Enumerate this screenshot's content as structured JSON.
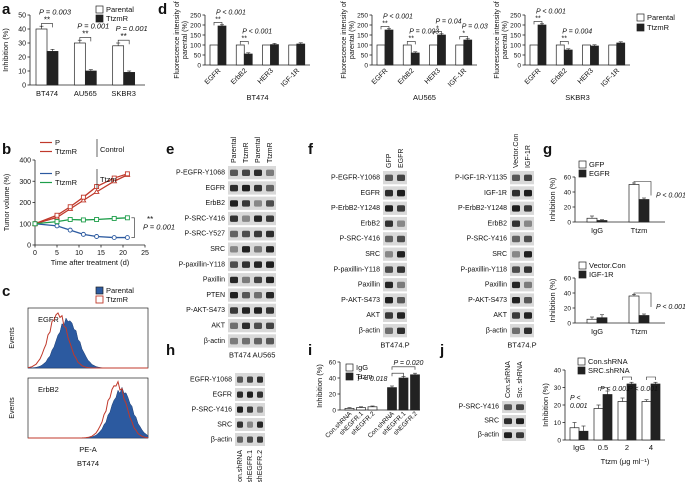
{
  "panel_letters": [
    "a",
    "b",
    "c",
    "d",
    "e",
    "f",
    "g",
    "h",
    "i",
    "j"
  ],
  "chart_data": [
    {
      "id": "a",
      "type": "bar",
      "ylabel": "Inhibition (%)",
      "ylim": [
        0,
        50
      ],
      "yticks": [
        0,
        10,
        20,
        30,
        40,
        50
      ],
      "categories": [
        "BT474",
        "AU565",
        "SKBR3"
      ],
      "series": [
        {
          "name": "Parental",
          "values": [
            40,
            30,
            28
          ],
          "err": [
            2,
            2,
            2
          ],
          "color": "#ffffff"
        },
        {
          "name": "TtzmR",
          "values": [
            24,
            10,
            9
          ],
          "err": [
            1.5,
            1,
            1
          ],
          "color": "#222222"
        }
      ],
      "legend": "top-right",
      "annotations": [
        {
          "group": 0,
          "text": "P = 0.003",
          "stars": "**"
        },
        {
          "group": 1,
          "text": "P = 0.001",
          "stars": "**"
        },
        {
          "group": 2,
          "text": "P = 0.001",
          "stars": "**"
        }
      ]
    },
    {
      "id": "b",
      "type": "line",
      "ylabel": "Tumor volume (%)",
      "xlabel": "Time after treatment (d)",
      "xlim": [
        0,
        25
      ],
      "ylim": [
        0,
        400
      ],
      "xticks": [
        0,
        5,
        10,
        15,
        20,
        25
      ],
      "yticks": [
        0,
        100,
        200,
        300,
        400
      ],
      "series": [
        {
          "name": "P",
          "group": "Control",
          "color": "#c0392b",
          "marker": "triangle",
          "x": [
            0,
            5,
            8,
            11,
            14,
            18,
            21
          ],
          "y": [
            100,
            130,
            170,
            210,
            250,
            300,
            330
          ]
        },
        {
          "name": "TtzmR",
          "group": "Control",
          "color": "#c0392b",
          "marker": "square",
          "x": [
            0,
            5,
            8,
            11,
            14,
            18,
            21
          ],
          "y": [
            100,
            140,
            180,
            225,
            275,
            315,
            335
          ]
        },
        {
          "name": "P",
          "group": "Ttzm",
          "color": "#2c5aa0",
          "marker": "circle",
          "x": [
            0,
            5,
            8,
            11,
            14,
            18,
            21
          ],
          "y": [
            100,
            90,
            70,
            50,
            40,
            35,
            35
          ]
        },
        {
          "name": "TtzmR",
          "group": "Ttzm",
          "color": "#1e9e4a",
          "marker": "square",
          "x": [
            0,
            5,
            8,
            11,
            14,
            18,
            21
          ],
          "y": [
            100,
            110,
            120,
            118,
            120,
            125,
            128
          ]
        }
      ],
      "legend_groups": [
        "Control",
        "Ttzm"
      ],
      "annotation": {
        "stars": "**",
        "text": "P = 0.001"
      }
    },
    {
      "id": "c",
      "type": "area",
      "legend": [
        "Parental",
        "TtzmR"
      ],
      "xlabel": "PE-A",
      "ylabel": "Events",
      "caption": "BT474",
      "subplots": [
        {
          "label": "EGFR",
          "mode": 0.25,
          "parental_mode": 0.33
        },
        {
          "label": "ErbB2",
          "mode": 0.74,
          "parental_mode": 0.78
        }
      ]
    },
    {
      "id": "d",
      "type": "bar",
      "ylabel": "Fluorescence intensity of parental (%)",
      "ylim": [
        0,
        250
      ],
      "yticks": [
        0,
        50,
        100,
        150,
        200,
        250
      ],
      "legend": [
        "Parental",
        "TtzmR"
      ],
      "subcharts": [
        {
          "cell": "BT474",
          "categories": [
            "EGFR",
            "ErbB2",
            "HER3",
            "IGF-1R"
          ],
          "parental": [
            100,
            100,
            100,
            100
          ],
          "ttzmr": [
            195,
            55,
            102,
            105
          ],
          "annotations": [
            {
              "text": "P < 0.001",
              "stars": "**"
            },
            {
              "text": "P < 0.001",
              "stars": "**"
            }
          ]
        },
        {
          "cell": "AU565",
          "categories": [
            "EGFR",
            "ErbB2",
            "HER3",
            "IGF-1R"
          ],
          "parental": [
            100,
            100,
            100,
            100
          ],
          "ttzmr": [
            175,
            60,
            150,
            125
          ],
          "annotations": [
            {
              "text": "P < 0.001",
              "stars": "**"
            },
            {
              "text": "P = 0.003",
              "stars": "**"
            },
            {
              "text": "P = 0.04",
              "stars": "*"
            },
            {
              "text": "P = 0.03",
              "stars": "*"
            }
          ]
        },
        {
          "cell": "SKBR3",
          "categories": [
            "EGFR",
            "ErbB2",
            "HER3",
            "IGF-1R"
          ],
          "parental": [
            100,
            100,
            100,
            100
          ],
          "ttzmr": [
            200,
            75,
            95,
            110
          ],
          "annotations": [
            {
              "text": "P < 0.001",
              "stars": "**"
            },
            {
              "text": "P = 0.004",
              "stars": "**"
            }
          ]
        }
      ]
    },
    {
      "id": "g",
      "type": "bar",
      "ylabel": "Inhibition (%)",
      "ylim": [
        0,
        60
      ],
      "yticks": [
        0,
        20,
        40,
        60
      ],
      "subcharts": [
        {
          "legend": [
            "GFP",
            "EGFR"
          ],
          "categories": [
            "IgG",
            "Ttzm"
          ],
          "values_open": [
            5,
            50
          ],
          "values_filled": [
            2,
            30
          ],
          "err_open": [
            3,
            2
          ],
          "err_filled": [
            1,
            2
          ],
          "annotation": "P < 0.001"
        },
        {
          "legend": [
            "Vector.Con",
            "IGF-1R"
          ],
          "categories": [
            "IgG",
            "Ttzm"
          ],
          "values_open": [
            5,
            36
          ],
          "values_filled": [
            7,
            10
          ],
          "err_open": [
            3,
            2
          ],
          "err_filled": [
            4,
            2
          ],
          "annotation": "P < 0.001"
        }
      ]
    },
    {
      "id": "i",
      "type": "bar",
      "ylabel": "Inhibition (%)",
      "ylim": [
        0,
        60
      ],
      "yticks": [
        0,
        20,
        40,
        60
      ],
      "legend": [
        "IgG",
        "Ttzm"
      ],
      "categories": [
        "Con.shRNA",
        "shEGFR.1",
        "shEGFR.2",
        "Con.shRNA",
        "shEGFR.1",
        "shEGFR.2"
      ],
      "values": [
        2,
        3,
        4,
        28,
        40,
        44
      ],
      "err": [
        1,
        1,
        1,
        2,
        2,
        2
      ],
      "filled": [
        false,
        false,
        false,
        true,
        true,
        true
      ],
      "annotations": [
        "P = 0.018",
        "P = 0.020"
      ]
    },
    {
      "id": "j",
      "type": "bar",
      "ylabel": "Inhibition (%)",
      "ylim": [
        0,
        40
      ],
      "yticks": [
        0,
        10,
        20,
        30,
        40
      ],
      "xlabel": "Ttzm (μg ml⁻¹)",
      "legend": [
        "Con.shRNA",
        "SRC.shRNA"
      ],
      "categories": [
        "IgG",
        "0.5",
        "2",
        "4"
      ],
      "series": [
        {
          "name": "Con.shRNA",
          "values": [
            7,
            18,
            22,
            22
          ],
          "err": [
            3,
            2,
            2,
            1
          ]
        },
        {
          "name": "SRC.shRNA",
          "values": [
            5,
            26,
            32,
            32
          ],
          "err": [
            3,
            2,
            1,
            1
          ]
        }
      ],
      "annotations": [
        "P < 0.001",
        "P < 0.001",
        "P < 0.001"
      ],
      "annotation_lines": [
        "P <",
        "0.001"
      ]
    }
  ],
  "blots": {
    "e": {
      "columns": [
        "Parental",
        "TtzmR",
        "Parental",
        "TtzmR"
      ],
      "rows": [
        "P-EGFR-Y1068",
        "EGFR",
        "ErbB2",
        "P-SRC-Y416",
        "P-SRC-Y527",
        "SRC",
        "P-paxillin-Y118",
        "Paxillin",
        "PTEN",
        "P-AKT-S473",
        "AKT",
        "β-actin"
      ],
      "groups": [
        "BT474",
        "AU565"
      ]
    },
    "f1": {
      "columns": [
        "GFP",
        "EGFR"
      ],
      "rows": [
        "P-EGFR-Y1068",
        "EGFR",
        "P-ErbB2-Y1248",
        "ErbB2",
        "P-SRC-Y416",
        "SRC",
        "P-paxillin-Y118",
        "Paxillin",
        "P-AKT-S473",
        "AKT",
        "β-actin"
      ],
      "caption": "BT474.P"
    },
    "f2": {
      "columns": [
        "Vector.Con",
        "IGF-1R"
      ],
      "rows": [
        "P-IGF-1R-Y1135",
        "IGF-1R",
        "P-ErbB2-Y1248",
        "ErbB2",
        "P-SRC-Y416",
        "SRC",
        "P-paxillin-Y118",
        "Paxillin",
        "P-AKT-S473",
        "AKT",
        "β-actin"
      ],
      "caption": "BT474.P"
    },
    "h": {
      "columns": [
        "Con.shRNA",
        "shEGFR.1",
        "shEGFR.2"
      ],
      "rows": [
        "EGFR-Y1068",
        "EGFR",
        "P-SRC-Y416",
        "SRC",
        "β-actin"
      ]
    },
    "j": {
      "columns": [
        "Con.shRNA",
        "Src. shRNA"
      ],
      "rows": [
        "P-SRC-Y416",
        "SRC",
        "β-actin"
      ]
    }
  }
}
